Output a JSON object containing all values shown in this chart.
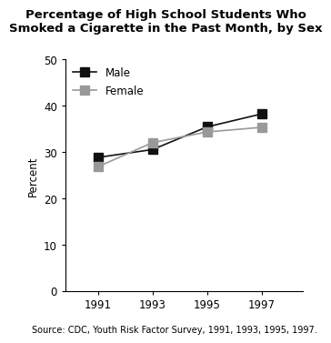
{
  "title": "Percentage of High School Students Who\nSmoked a Cigarette in the Past Month, by Sex",
  "ylabel": "Percent",
  "source_text": "Source: CDC, Youth Risk Factor Survey, 1991, 1993, 1995, 1997.",
  "years": [
    1991,
    1993,
    1995,
    1997
  ],
  "male_values": [
    28.8,
    30.5,
    35.4,
    38.2
  ],
  "female_values": [
    26.8,
    32.0,
    34.3,
    35.3
  ],
  "male_color": "#111111",
  "female_color": "#999999",
  "ylim": [
    0,
    50
  ],
  "yticks": [
    0,
    10,
    20,
    30,
    40,
    50
  ],
  "marker_size": 7,
  "linewidth": 1.2,
  "title_fontsize": 9.5,
  "label_fontsize": 8.5,
  "tick_fontsize": 8.5,
  "source_fontsize": 7.0,
  "legend_fontsize": 8.5
}
